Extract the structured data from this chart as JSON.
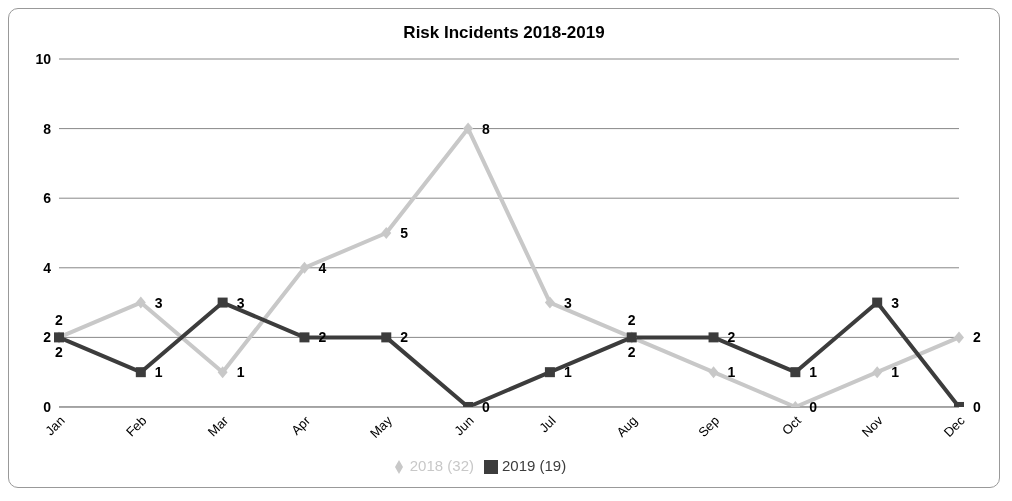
{
  "chart_data": {
    "type": "line",
    "title": "Risk Incidents 2018-2019",
    "categories": [
      "Jan",
      "Feb",
      "Mar",
      "Apr",
      "May",
      "Jun",
      "Jul",
      "Aug",
      "Sep",
      "Oct",
      "Nov",
      "Dec"
    ],
    "series": [
      {
        "name": "2018 (32)",
        "color": "#c8c8c8",
        "marker": "diamond",
        "values": [
          2,
          3,
          1,
          4,
          5,
          8,
          3,
          2,
          1,
          0,
          1,
          2
        ]
      },
      {
        "name": "2019 (19)",
        "color": "#3c3c3c",
        "marker": "square",
        "values": [
          2,
          1,
          3,
          2,
          2,
          0,
          1,
          2,
          2,
          1,
          3,
          0
        ]
      }
    ],
    "ylim": [
      0,
      10
    ],
    "yticks": [
      0,
      2,
      4,
      6,
      8,
      10
    ],
    "grid": "y",
    "legend": "bottom",
    "data_labels": true
  }
}
